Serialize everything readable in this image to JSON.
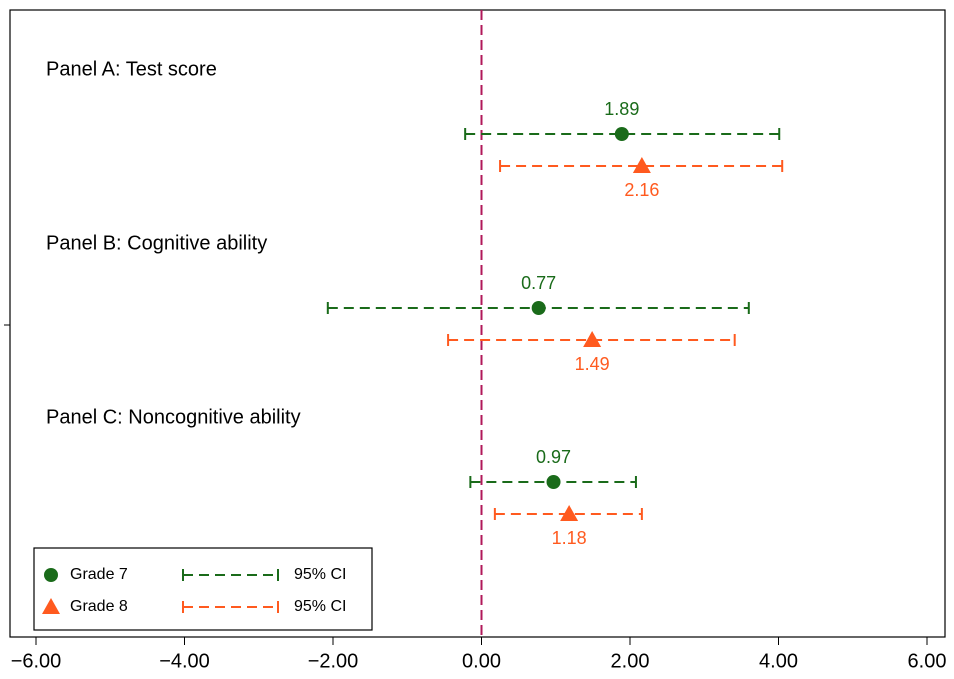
{
  "chart_data": {
    "type": "coefplot",
    "categories": [
      "Panel A: Test score",
      "Panel B: Cognitive ability",
      "Panel C: Noncognitive ability"
    ],
    "series": [
      {
        "name": "Grade 7",
        "ci_name": "95% CI",
        "color": "#1a6b1a",
        "marker": "circle",
        "values": [
          1.89,
          0.77,
          0.97
        ],
        "lower": [
          -0.22,
          -2.07,
          -0.15
        ],
        "upper": [
          4.01,
          3.6,
          2.08
        ]
      },
      {
        "name": "Grade 8",
        "ci_name": "95% CI",
        "color": "#ff5a1f",
        "marker": "triangle",
        "values": [
          2.16,
          1.49,
          1.18
        ],
        "lower": [
          0.25,
          -0.45,
          0.18
        ],
        "upper": [
          4.05,
          3.41,
          2.16
        ]
      }
    ],
    "xlim": [
      -6,
      6
    ],
    "xticks": [
      {
        "value": -6,
        "label": "−6.00"
      },
      {
        "value": -4,
        "label": "−4.00"
      },
      {
        "value": -2,
        "label": "−2.00"
      },
      {
        "value": 0,
        "label": "0.00"
      },
      {
        "value": 2,
        "label": "2.00"
      },
      {
        "value": 4,
        "label": "4.00"
      },
      {
        "value": 6,
        "label": "6.00"
      }
    ],
    "refline": 0,
    "refline_color": "#b0185a",
    "legend": "lower left"
  }
}
